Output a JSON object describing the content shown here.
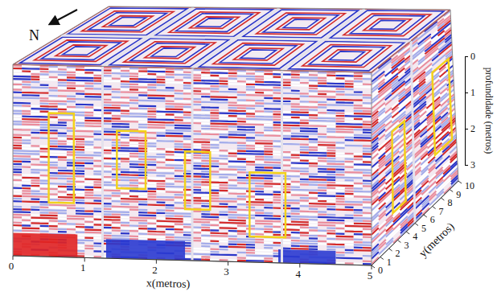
{
  "chart_data": {
    "type": "volume",
    "x_label": "x(metros)",
    "y_label": "y(metros)",
    "z_label": "profundidade (metros)",
    "north_label": "N",
    "xlim": [
      0,
      5
    ],
    "xticks": [
      0,
      1,
      2,
      3,
      4,
      5
    ],
    "ylim": [
      0,
      10
    ],
    "yticks": [
      0,
      1,
      2,
      3,
      4,
      5,
      6,
      7,
      8,
      9,
      10
    ],
    "zlim": [
      0,
      3
    ],
    "zticks": [
      0,
      1,
      2,
      3
    ],
    "front_regions": [
      {
        "x": [
          0.5,
          0.85
        ],
        "z": [
          0.75,
          2.15
        ]
      },
      {
        "x": [
          1.45,
          1.85
        ],
        "z": [
          1.0,
          1.9
        ]
      },
      {
        "x": [
          2.4,
          2.75
        ],
        "z": [
          1.3,
          2.2
        ]
      },
      {
        "x": [
          3.3,
          3.8
        ],
        "z": [
          1.6,
          2.6
        ]
      }
    ],
    "side_regions": [
      {
        "y": [
          2.5,
          4.0
        ],
        "z": [
          1.2,
          2.5
        ]
      },
      {
        "y": [
          7.5,
          9.5
        ],
        "z": [
          0.8,
          2.2
        ]
      }
    ]
  }
}
